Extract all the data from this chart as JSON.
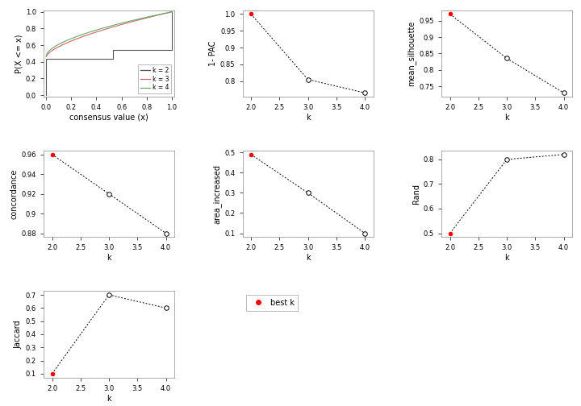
{
  "k_vals": [
    2,
    3,
    4
  ],
  "pac_1minus": [
    1.0,
    0.805,
    0.765
  ],
  "pac_yticks": [
    0.8,
    0.85,
    0.9,
    0.95,
    1.0
  ],
  "mean_silhouette": [
    0.97,
    0.835,
    0.73
  ],
  "sil_yticks": [
    0.75,
    0.8,
    0.85,
    0.9,
    0.95
  ],
  "concordance": [
    0.96,
    0.92,
    0.88
  ],
  "conc_yticks": [
    0.88,
    0.9,
    0.92,
    0.94,
    0.96
  ],
  "area_increased": [
    0.49,
    0.3,
    0.1
  ],
  "area_yticks": [
    0.1,
    0.2,
    0.3,
    0.4,
    0.5
  ],
  "rand": [
    0.5,
    0.8,
    0.82
  ],
  "rand_yticks": [
    0.5,
    0.6,
    0.7,
    0.8
  ],
  "jaccard": [
    0.1,
    0.7,
    0.6
  ],
  "jacc_yticks": [
    0.1,
    0.2,
    0.3,
    0.4,
    0.5,
    0.6,
    0.7
  ],
  "best_k": 2,
  "line_color": "#000000",
  "dot_open_color": "#ffffff",
  "dot_filled_color": "#ff0000",
  "ecdf_k2_color": "#555555",
  "ecdf_k3_color": "#cc6666",
  "ecdf_k4_color": "#66aa66",
  "bg_color": "#ffffff",
  "axis_fontsize": 7,
  "tick_fontsize": 6
}
